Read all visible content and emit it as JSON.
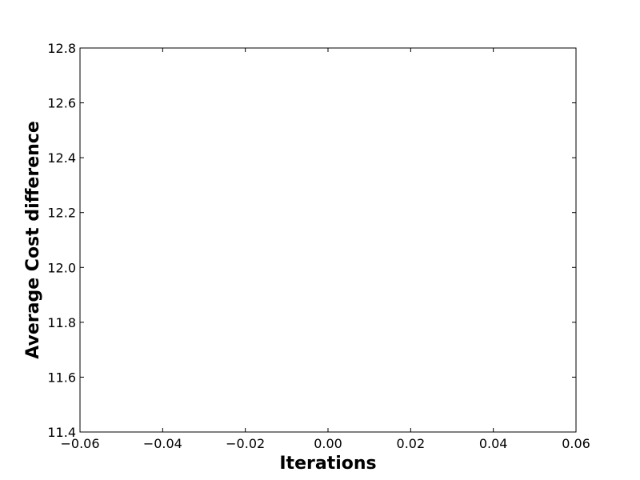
{
  "chart_data": {
    "type": "line",
    "title": "",
    "xlabel": "Iterations",
    "ylabel": "Average Cost difference",
    "xlim": [
      -0.06,
      0.06
    ],
    "ylim": [
      11.4,
      12.8
    ],
    "x_ticks": [
      -0.06,
      -0.04,
      -0.02,
      0.0,
      0.02,
      0.04,
      0.06
    ],
    "x_tick_labels": [
      "−0.06",
      "−0.04",
      "−0.02",
      "0.00",
      "0.02",
      "0.04",
      "0.06"
    ],
    "y_ticks": [
      11.4,
      11.6,
      11.8,
      12.0,
      12.2,
      12.4,
      12.6,
      12.8
    ],
    "y_tick_labels": [
      "11.4",
      "11.6",
      "11.8",
      "12.0",
      "12.2",
      "12.4",
      "12.6",
      "12.8"
    ],
    "grid": false,
    "series": []
  }
}
